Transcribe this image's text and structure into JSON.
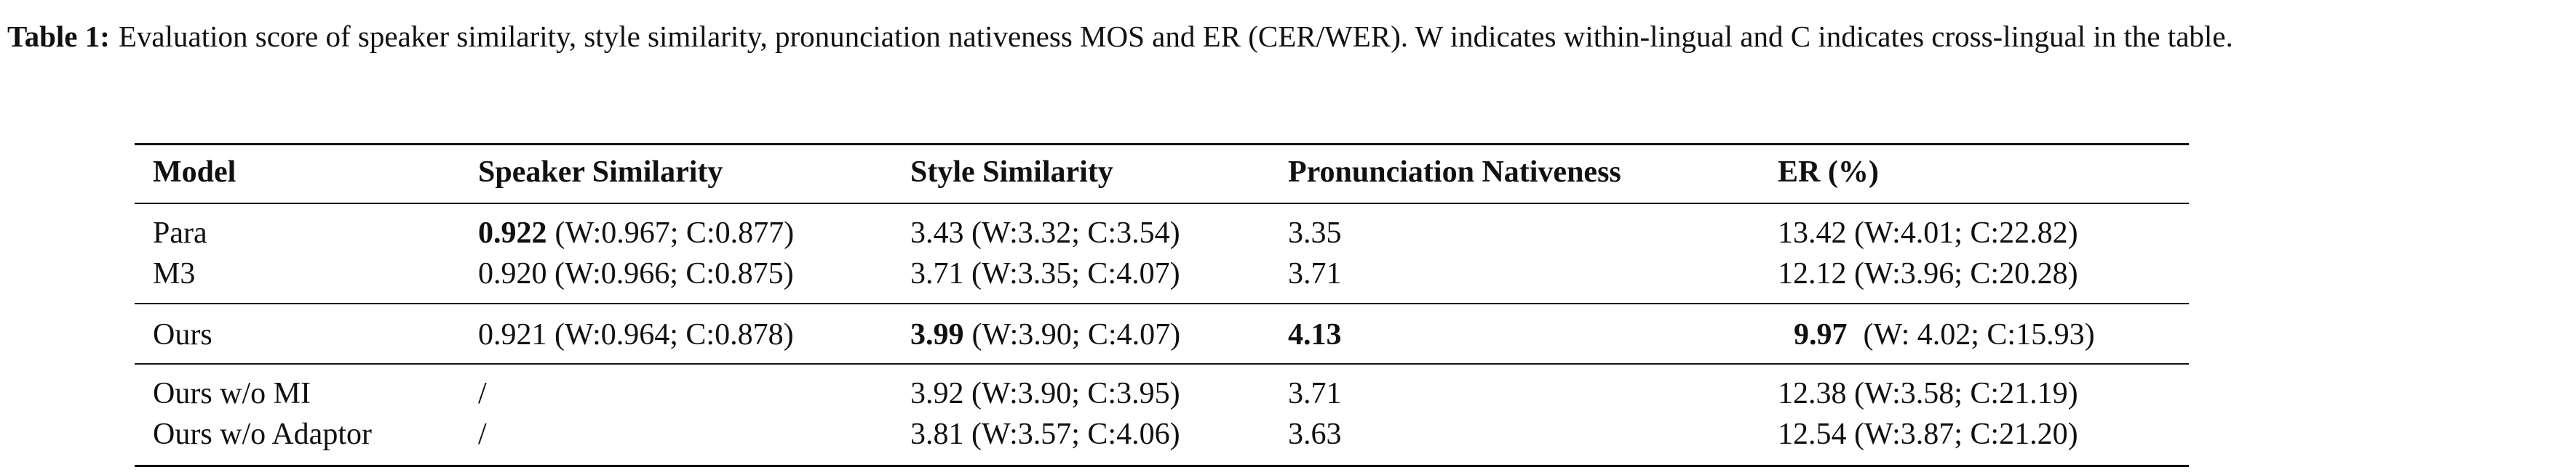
{
  "caption": {
    "label": "Table 1:",
    "text": "Evaluation score of speaker similarity, style similarity, pronunciation nativeness MOS and ER (CER/WER). W indicates within-lingual and C indicates cross-lingual in the table."
  },
  "table": {
    "header": [
      "Model",
      "Speaker Similarity",
      "Style Similarity",
      "Pronunciation Nativeness",
      "ER (%)"
    ],
    "groups": [
      [
        [
          "Para",
          {
            "bold": "0.922",
            "rest": "(W:0.967; C:0.877)"
          },
          "3.43 (W:3.32; C:3.54)",
          "3.35",
          "13.42 (W:4.01; C:22.82)"
        ],
        [
          "M3",
          "0.920 (W:0.966; C:0.875)",
          "3.71 (W:3.35; C:4.07)",
          "3.71",
          "12.12 (W:3.96; C:20.28)"
        ]
      ],
      [
        [
          "Ours",
          "0.921 (W:0.964; C:0.878)",
          {
            "bold": "3.99",
            "rest": "(W:3.90; C:4.07)"
          },
          {
            "bold": "4.13"
          },
          {
            "bold": "9.97",
            "rest": "(W: 4.02; C:15.93)"
          }
        ]
      ],
      [
        [
          "Ours w/o MI",
          "/",
          "3.92 (W:3.90; C:3.95)",
          "3.71",
          "12.38 (W:3.58; C:21.19)"
        ],
        [
          "Ours w/o Adaptor",
          "/",
          "3.81 (W:3.57; C:4.06)",
          "3.63",
          "12.54 (W:3.87; C:21.20)"
        ]
      ]
    ]
  }
}
